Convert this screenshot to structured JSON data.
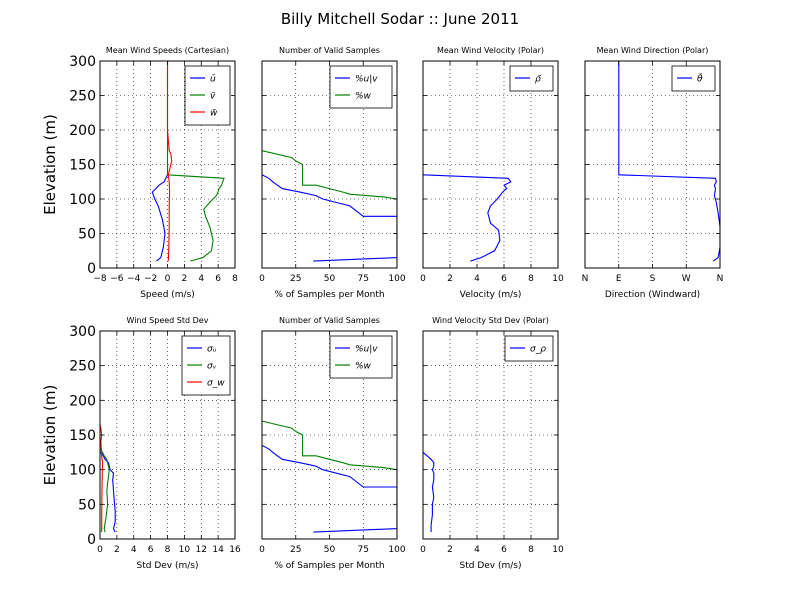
{
  "figure": {
    "title": "Billy Mitchell Sodar :: June 2011",
    "ylabel": "Elevation (m)"
  },
  "chart_data": [
    {
      "type": "line",
      "title": "Mean Wind Speeds (Cartesian)",
      "xlabel": "Speed (m/s)",
      "xlim": [
        -8,
        8
      ],
      "ylim": [
        0,
        300
      ],
      "xticks": [
        -8,
        -6,
        -4,
        -2,
        0,
        2,
        4,
        6,
        8
      ],
      "xticklabels": [
        "−8",
        "−6",
        "−4",
        "−2",
        "0",
        "2",
        "4",
        "6",
        "8"
      ],
      "yticks": [
        0,
        50,
        100,
        150,
        200,
        250,
        300
      ],
      "grid": true,
      "legend": "upper right",
      "show_ylabels": true,
      "series": [
        {
          "name": "ū",
          "color": "#0000ff",
          "x": [
            -1.3,
            -0.8,
            -0.5,
            -0.3,
            -0.6,
            -1.1,
            -1.5,
            -1.8,
            -1.0,
            -0.4,
            0.0
          ],
          "y": [
            10,
            15,
            30,
            50,
            70,
            90,
            100,
            110,
            120,
            125,
            135
          ]
        },
        {
          "name": "v̄",
          "color": "#008000",
          "x": [
            2.7,
            4.2,
            5.2,
            5.4,
            5.0,
            4.5,
            4.3,
            5.0,
            5.8,
            6.0,
            6.1,
            6.4,
            6.7,
            0.0,
            0.0,
            0.0,
            0.0,
            0.0,
            0.0,
            0.0,
            0.0
          ],
          "y": [
            10,
            15,
            25,
            40,
            60,
            75,
            85,
            95,
            105,
            110,
            115,
            120,
            130,
            135,
            150,
            170,
            200,
            230,
            260,
            280,
            300
          ]
        },
        {
          "name": "w̄",
          "color": "#ff0000",
          "x": [
            0.1,
            0.15,
            0.2,
            0.2,
            0.25,
            0.2,
            0.1,
            0.3,
            0.5,
            0.4,
            0.2,
            0.0,
            0.0,
            0.0,
            0.0
          ],
          "y": [
            10,
            30,
            60,
            90,
            110,
            125,
            135,
            145,
            155,
            165,
            170,
            200,
            240,
            280,
            300
          ]
        }
      ]
    },
    {
      "type": "line",
      "title": "Number of Valid Samples",
      "xlabel": "% of Samples per Month",
      "xlim": [
        0,
        100
      ],
      "ylim": [
        0,
        300
      ],
      "xticks": [
        0,
        25,
        50,
        75,
        100
      ],
      "xticklabels": [
        "0",
        "25",
        "50",
        "75",
        "100"
      ],
      "yticks": [
        0,
        50,
        100,
        150,
        200,
        250,
        300
      ],
      "grid": true,
      "legend": "upper right",
      "show_ylabels": false,
      "series": [
        {
          "name": "%u|v",
          "color": "#0000ff",
          "x": [
            38,
            100,
            100,
            100,
            75,
            65,
            45,
            40,
            28,
            15,
            10,
            8,
            5,
            0
          ],
          "y": [
            10,
            15,
            30,
            75,
            75,
            90,
            100,
            105,
            110,
            115,
            122,
            125,
            130,
            135
          ]
        },
        {
          "name": "%w",
          "color": "#008000",
          "x": [
            100,
            100,
            100,
            90,
            65,
            60,
            50,
            40,
            30,
            30,
            25,
            22,
            0
          ],
          "y": [
            10,
            50,
            100,
            103,
            107,
            110,
            115,
            120,
            120,
            150,
            155,
            160,
            170
          ]
        }
      ]
    },
    {
      "type": "line",
      "title": "Mean Wind Velocity (Polar)",
      "xlabel": "Velocity (m/s)",
      "xlim": [
        0,
        10
      ],
      "ylim": [
        0,
        300
      ],
      "xticks": [
        0,
        2,
        4,
        6,
        8,
        10
      ],
      "xticklabels": [
        "0",
        "2",
        "4",
        "6",
        "8",
        "10"
      ],
      "yticks": [
        0,
        50,
        100,
        150,
        200,
        250,
        300
      ],
      "grid": true,
      "legend": "upper right",
      "show_ylabels": false,
      "series": [
        {
          "name": "ρ̄",
          "color": "#0000ff",
          "x": [
            3.5,
            4.3,
            5.3,
            5.7,
            5.6,
            5.0,
            4.8,
            5.0,
            5.5,
            5.9,
            6.2,
            6.0,
            6.5,
            6.3,
            0.0
          ],
          "y": [
            10,
            15,
            25,
            40,
            55,
            65,
            80,
            90,
            100,
            110,
            115,
            120,
            125,
            130,
            135
          ]
        }
      ]
    },
    {
      "type": "line",
      "title": "Mean Wind Direction (Polar)",
      "xlabel": "Direction (Windward)",
      "xlim": [
        0,
        360
      ],
      "ylim": [
        0,
        300
      ],
      "xticks": [
        0,
        90,
        180,
        270,
        360
      ],
      "xticklabels": [
        "N",
        "E",
        "S",
        "W",
        "N"
      ],
      "yticks": [
        0,
        50,
        100,
        150,
        200,
        250,
        300
      ],
      "grid": true,
      "legend": "upper right",
      "show_ylabels": false,
      "series": [
        {
          "name": "θ̄",
          "color": "#0000ff",
          "x": [
            342,
            355,
            360,
            360,
            355,
            350,
            345,
            348,
            345,
            350,
            348,
            90,
            90,
            90
          ],
          "y": [
            10,
            15,
            30,
            60,
            80,
            95,
            105,
            115,
            120,
            125,
            130,
            135,
            200,
            300
          ]
        }
      ]
    },
    {
      "type": "line",
      "title": "Wind Speed Std Dev",
      "xlabel": "Std Dev (m/s)",
      "xlim": [
        0,
        16
      ],
      "ylim": [
        0,
        300
      ],
      "xticks": [
        0,
        2,
        4,
        6,
        8,
        10,
        12,
        14,
        16
      ],
      "xticklabels": [
        "0",
        "2",
        "4",
        "6",
        "8",
        "10",
        "12",
        "14",
        "16"
      ],
      "yticks": [
        0,
        50,
        100,
        150,
        200,
        250,
        300
      ],
      "grid": true,
      "legend": "upper right",
      "show_ylabels": true,
      "series": [
        {
          "name": "σᵤ",
          "color": "#0000ff",
          "x": [
            1.8,
            1.6,
            1.8,
            1.8,
            1.7,
            1.6,
            1.5,
            1.6,
            1.2,
            1.0,
            0.6,
            0.3,
            0.0
          ],
          "y": [
            10,
            15,
            25,
            40,
            55,
            70,
            85,
            95,
            100,
            110,
            115,
            122,
            125
          ]
        },
        {
          "name": "σᵥ",
          "color": "#008000",
          "x": [
            0.6,
            0.5,
            0.7,
            0.9,
            0.8,
            0.9,
            1.0,
            1.1,
            0.9,
            0.8,
            0.5,
            0.3,
            0.0
          ],
          "y": [
            10,
            15,
            30,
            50,
            70,
            80,
            90,
            100,
            110,
            115,
            120,
            125,
            130
          ]
        },
        {
          "name": "σ_w",
          "color": "#ff0000",
          "x": [
            0.2,
            0.2,
            0.25,
            0.3,
            0.2,
            0.15,
            0.1,
            0.2,
            0.1,
            0.0
          ],
          "y": [
            10,
            40,
            80,
            110,
            120,
            130,
            140,
            150,
            160,
            165
          ]
        }
      ]
    },
    {
      "type": "line",
      "title": "Number of Valid Samples",
      "xlabel": "% of Samples per Month",
      "xlim": [
        0,
        100
      ],
      "ylim": [
        0,
        300
      ],
      "xticks": [
        0,
        25,
        50,
        75,
        100
      ],
      "xticklabels": [
        "0",
        "25",
        "50",
        "75",
        "100"
      ],
      "yticks": [
        0,
        50,
        100,
        150,
        200,
        250,
        300
      ],
      "grid": true,
      "legend": "upper right",
      "show_ylabels": false,
      "series": [
        {
          "name": "%u|v",
          "color": "#0000ff",
          "x": [
            38,
            100,
            100,
            100,
            75,
            65,
            45,
            40,
            28,
            15,
            10,
            8,
            5,
            0
          ],
          "y": [
            10,
            15,
            30,
            75,
            75,
            90,
            100,
            105,
            110,
            115,
            122,
            125,
            130,
            135
          ]
        },
        {
          "name": "%w",
          "color": "#008000",
          "x": [
            100,
            100,
            100,
            90,
            65,
            60,
            50,
            40,
            30,
            30,
            25,
            22,
            0
          ],
          "y": [
            10,
            50,
            100,
            103,
            107,
            110,
            115,
            120,
            120,
            150,
            155,
            160,
            170
          ]
        }
      ]
    },
    {
      "type": "line",
      "title": "Wind Velocity Std Dev (Polar)",
      "xlabel": "Std Dev (m/s)",
      "xlim": [
        0,
        10
      ],
      "ylim": [
        0,
        300
      ],
      "xticks": [
        0,
        2,
        4,
        6,
        8,
        10
      ],
      "xticklabels": [
        "0",
        "2",
        "4",
        "6",
        "8",
        "10"
      ],
      "yticks": [
        0,
        50,
        100,
        150,
        200,
        250,
        300
      ],
      "grid": true,
      "legend": "upper right",
      "show_ylabels": false,
      "series": [
        {
          "name": "σ_ρ",
          "color": "#0000ff",
          "x": [
            0.6,
            0.6,
            0.7,
            0.7,
            0.8,
            0.7,
            0.8,
            0.8,
            0.7,
            0.8,
            0.8,
            0.6,
            0.3,
            0.0
          ],
          "y": [
            10,
            20,
            35,
            50,
            60,
            75,
            85,
            95,
            100,
            105,
            110,
            115,
            120,
            125
          ]
        }
      ]
    }
  ]
}
